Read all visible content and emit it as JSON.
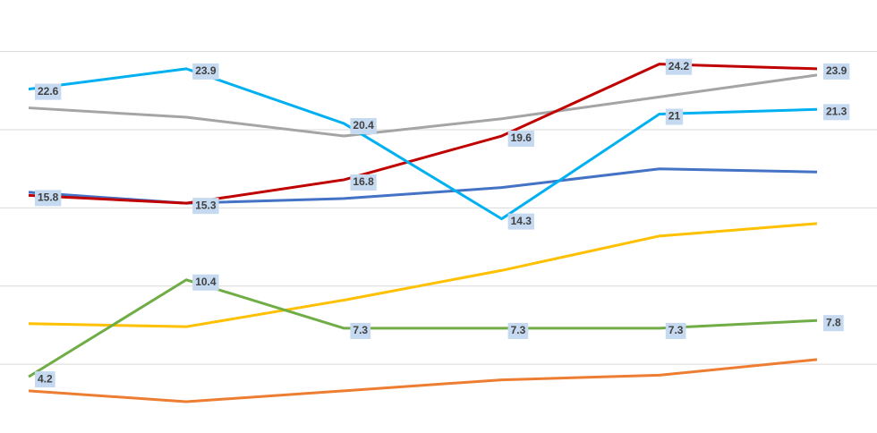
{
  "chart_data": {
    "type": "line",
    "categories": [
      null,
      null,
      null,
      null,
      null,
      null
    ],
    "ylim": [
      0.6,
      28.3
    ],
    "yticks": [
      5,
      10,
      15,
      20,
      25
    ],
    "grid": true,
    "series": [
      {
        "color": "#ed7d31",
        "values": [
          3.3,
          2.6,
          3.3,
          4.0,
          4.3,
          5.3
        ]
      },
      {
        "color": "#ffc000",
        "values": [
          7.6,
          7.4,
          9.1,
          11.0,
          13.2,
          14.0
        ]
      },
      {
        "color": "#a5a5a5",
        "values": [
          21.4,
          20.8,
          19.6,
          20.7,
          22.1,
          23.5
        ]
      },
      {
        "color": "#4472c4",
        "values": [
          16.0,
          15.3,
          15.6,
          16.3,
          17.5,
          17.3
        ]
      },
      {
        "color": "#70ad47",
        "values": [
          4.2,
          10.4,
          7.3,
          7.3,
          7.3,
          7.8
        ],
        "data_labels": true
      },
      {
        "color": "#c00000",
        "values": [
          15.8,
          15.3,
          16.8,
          19.6,
          24.2,
          23.9
        ],
        "data_labels": true
      },
      {
        "color": "#00b0f0",
        "values": [
          22.6,
          23.9,
          20.4,
          14.3,
          21,
          21.3
        ],
        "data_labels": true
      }
    ]
  }
}
